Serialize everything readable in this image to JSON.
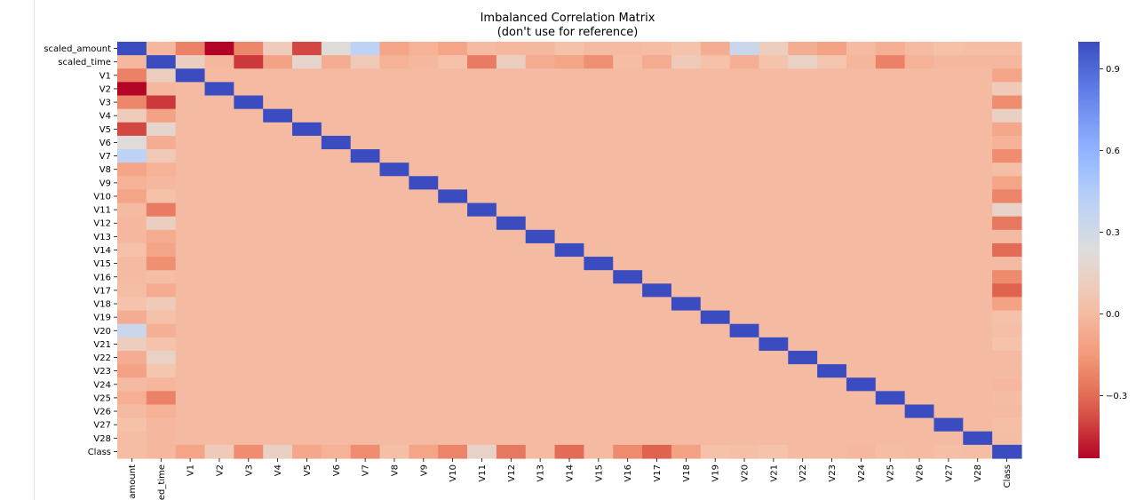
{
  "chart_data": {
    "type": "heatmap",
    "title": "Imbalanced Correlation Matrix",
    "subtitle": "(don't use for reference)",
    "labels": [
      "scaled_amount",
      "scaled_time",
      "V1",
      "V2",
      "V3",
      "V4",
      "V5",
      "V6",
      "V7",
      "V8",
      "V9",
      "V10",
      "V11",
      "V12",
      "V13",
      "V14",
      "V15",
      "V16",
      "V17",
      "V18",
      "V19",
      "V20",
      "V21",
      "V22",
      "V23",
      "V24",
      "V25",
      "V26",
      "V27",
      "V28",
      "Class"
    ],
    "x_tick_labels_visible": [
      "amount",
      "ed_time",
      "V1",
      "V2",
      "V3",
      "V4",
      "V5",
      "V6",
      "V7",
      "V8",
      "V9",
      "V10",
      "V11",
      "V12",
      "V13",
      "V14",
      "V15",
      "V16",
      "V17",
      "V18",
      "V19",
      "V20",
      "V21",
      "V22",
      "V23",
      "V24",
      "V25",
      "V26",
      "V27",
      "V28",
      "Class"
    ],
    "colormap": "coolwarm",
    "vmin": -0.53,
    "vmax": 1.0,
    "colorbar_ticks": [
      0.9,
      0.6,
      0.3,
      0.0,
      -0.3
    ],
    "colorbar_tick_labels": [
      "0.9",
      "0.6",
      "0.3",
      "0.0",
      "−0.3"
    ],
    "corr_amount": [
      1.0,
      -0.01,
      -0.23,
      -0.53,
      -0.21,
      0.1,
      -0.39,
      0.22,
      0.4,
      -0.1,
      -0.04,
      -0.1,
      0.0,
      -0.01,
      -0.01,
      0.03,
      0.0,
      0.0,
      0.01,
      0.04,
      -0.06,
      0.34,
      0.11,
      -0.06,
      -0.11,
      0.0,
      -0.05,
      -0.0,
      0.03,
      0.01,
      0.01
    ],
    "corr_time": [
      -0.01,
      1.0,
      0.12,
      -0.01,
      -0.42,
      -0.11,
      0.17,
      -0.06,
      0.08,
      -0.04,
      -0.01,
      0.03,
      -0.25,
      0.12,
      -0.07,
      -0.1,
      -0.18,
      0.01,
      -0.07,
      0.09,
      0.03,
      -0.05,
      0.04,
      0.14,
      0.05,
      -0.02,
      -0.23,
      -0.04,
      -0.01,
      -0.01,
      -0.01
    ],
    "corr_class": [
      0.01,
      -0.01,
      -0.1,
      0.09,
      -0.19,
      0.13,
      -0.09,
      -0.04,
      -0.19,
      0.02,
      -0.1,
      -0.22,
      0.15,
      -0.26,
      -0.0,
      -0.3,
      -0.0,
      -0.2,
      -0.33,
      -0.11,
      0.03,
      0.02,
      0.04,
      -0.0,
      -0.0,
      -0.01,
      0.01,
      0.0,
      0.02,
      0.01,
      1.0
    ]
  }
}
